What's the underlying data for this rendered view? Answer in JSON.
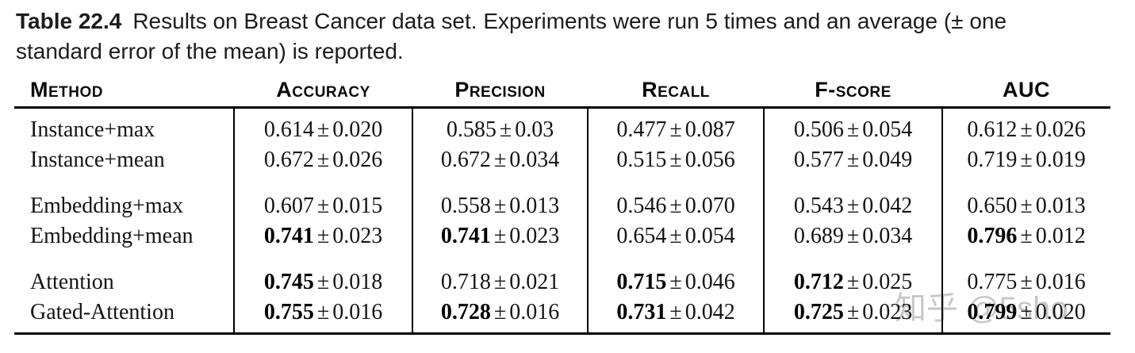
{
  "caption": {
    "label": "Table 22.4",
    "line1_rest": "Results on Breast Cancer data set. Experiments were run 5 times and an average (± one",
    "line2": "standard error of the mean) is reported."
  },
  "table": {
    "plus_minus": "±",
    "columns": [
      "Method",
      "Accuracy",
      "Precision",
      "Recall",
      "F-score",
      "AUC"
    ],
    "groups": [
      {
        "rows": [
          {
            "method": "Instance+max",
            "values": [
              {
                "mean": "0.614",
                "err": "0.020",
                "bold": false
              },
              {
                "mean": "0.585",
                "err": "0.03",
                "bold": false
              },
              {
                "mean": "0.477",
                "err": "0.087",
                "bold": false
              },
              {
                "mean": "0.506",
                "err": "0.054",
                "bold": false
              },
              {
                "mean": "0.612",
                "err": "0.026",
                "bold": false
              }
            ]
          },
          {
            "method": "Instance+mean",
            "values": [
              {
                "mean": "0.672",
                "err": "0.026",
                "bold": false
              },
              {
                "mean": "0.672",
                "err": "0.034",
                "bold": false
              },
              {
                "mean": "0.515",
                "err": "0.056",
                "bold": false
              },
              {
                "mean": "0.577",
                "err": "0.049",
                "bold": false
              },
              {
                "mean": "0.719",
                "err": "0.019",
                "bold": false
              }
            ]
          }
        ]
      },
      {
        "rows": [
          {
            "method": "Embedding+max",
            "values": [
              {
                "mean": "0.607",
                "err": "0.015",
                "bold": false
              },
              {
                "mean": "0.558",
                "err": "0.013",
                "bold": false
              },
              {
                "mean": "0.546",
                "err": "0.070",
                "bold": false
              },
              {
                "mean": "0.543",
                "err": "0.042",
                "bold": false
              },
              {
                "mean": "0.650",
                "err": "0.013",
                "bold": false
              }
            ]
          },
          {
            "method": "Embedding+mean",
            "values": [
              {
                "mean": "0.741",
                "err": "0.023",
                "bold": true
              },
              {
                "mean": "0.741",
                "err": "0.023",
                "bold": true
              },
              {
                "mean": "0.654",
                "err": "0.054",
                "bold": false
              },
              {
                "mean": "0.689",
                "err": "0.034",
                "bold": false
              },
              {
                "mean": "0.796",
                "err": "0.012",
                "bold": true
              }
            ]
          }
        ]
      },
      {
        "rows": [
          {
            "method": "Attention",
            "values": [
              {
                "mean": "0.745",
                "err": "0.018",
                "bold": true
              },
              {
                "mean": "0.718",
                "err": "0.021",
                "bold": false
              },
              {
                "mean": "0.715",
                "err": "0.046",
                "bold": true
              },
              {
                "mean": "0.712",
                "err": "0.025",
                "bold": true
              },
              {
                "mean": "0.775",
                "err": "0.016",
                "bold": false
              }
            ]
          },
          {
            "method": "Gated-Attention",
            "values": [
              {
                "mean": "0.755",
                "err": "0.016",
                "bold": true
              },
              {
                "mean": "0.728",
                "err": "0.016",
                "bold": true
              },
              {
                "mean": "0.731",
                "err": "0.042",
                "bold": true
              },
              {
                "mean": "0.725",
                "err": "0.023",
                "bold": true
              },
              {
                "mean": "0.799",
                "err": "0.020",
                "bold": true
              }
            ]
          }
        ]
      }
    ]
  },
  "watermark": {
    "text": "知乎 @5sho",
    "color": "#c7c7c7"
  }
}
